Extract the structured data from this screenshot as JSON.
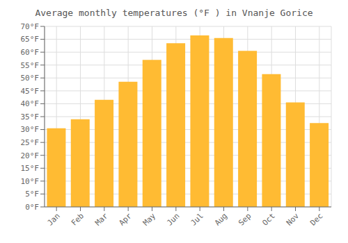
{
  "chart_data": {
    "type": "bar",
    "title": "Average monthly temperatures (°F ) in Vnanje Gorice",
    "categories": [
      "Jan",
      "Feb",
      "Mar",
      "Apr",
      "May",
      "Jun",
      "Jul",
      "Aug",
      "Sep",
      "Oct",
      "Nov",
      "Dec"
    ],
    "values": [
      30.5,
      34.0,
      41.5,
      48.5,
      57.0,
      63.5,
      66.5,
      65.5,
      60.5,
      51.5,
      40.5,
      32.5
    ],
    "color": "#FFBB33",
    "ylim": [
      0,
      70
    ],
    "yticks": [
      {
        "value": 0,
        "label": "0°F"
      },
      {
        "value": 5,
        "label": "5°F"
      },
      {
        "value": 10,
        "label": "10°F"
      },
      {
        "value": 15,
        "label": "15°F"
      },
      {
        "value": 20,
        "label": "20°F"
      },
      {
        "value": 25,
        "label": "25°F"
      },
      {
        "value": 30,
        "label": "30°F"
      },
      {
        "value": 35,
        "label": "35°F"
      },
      {
        "value": 40,
        "label": "40°F"
      },
      {
        "value": 45,
        "label": "45°F"
      },
      {
        "value": 50,
        "label": "50°F"
      },
      {
        "value": 55,
        "label": "55°F"
      },
      {
        "value": 60,
        "label": "60°F"
      },
      {
        "value": 65,
        "label": "65°F"
      },
      {
        "value": 70,
        "label": "70°F"
      }
    ],
    "grid": true
  }
}
